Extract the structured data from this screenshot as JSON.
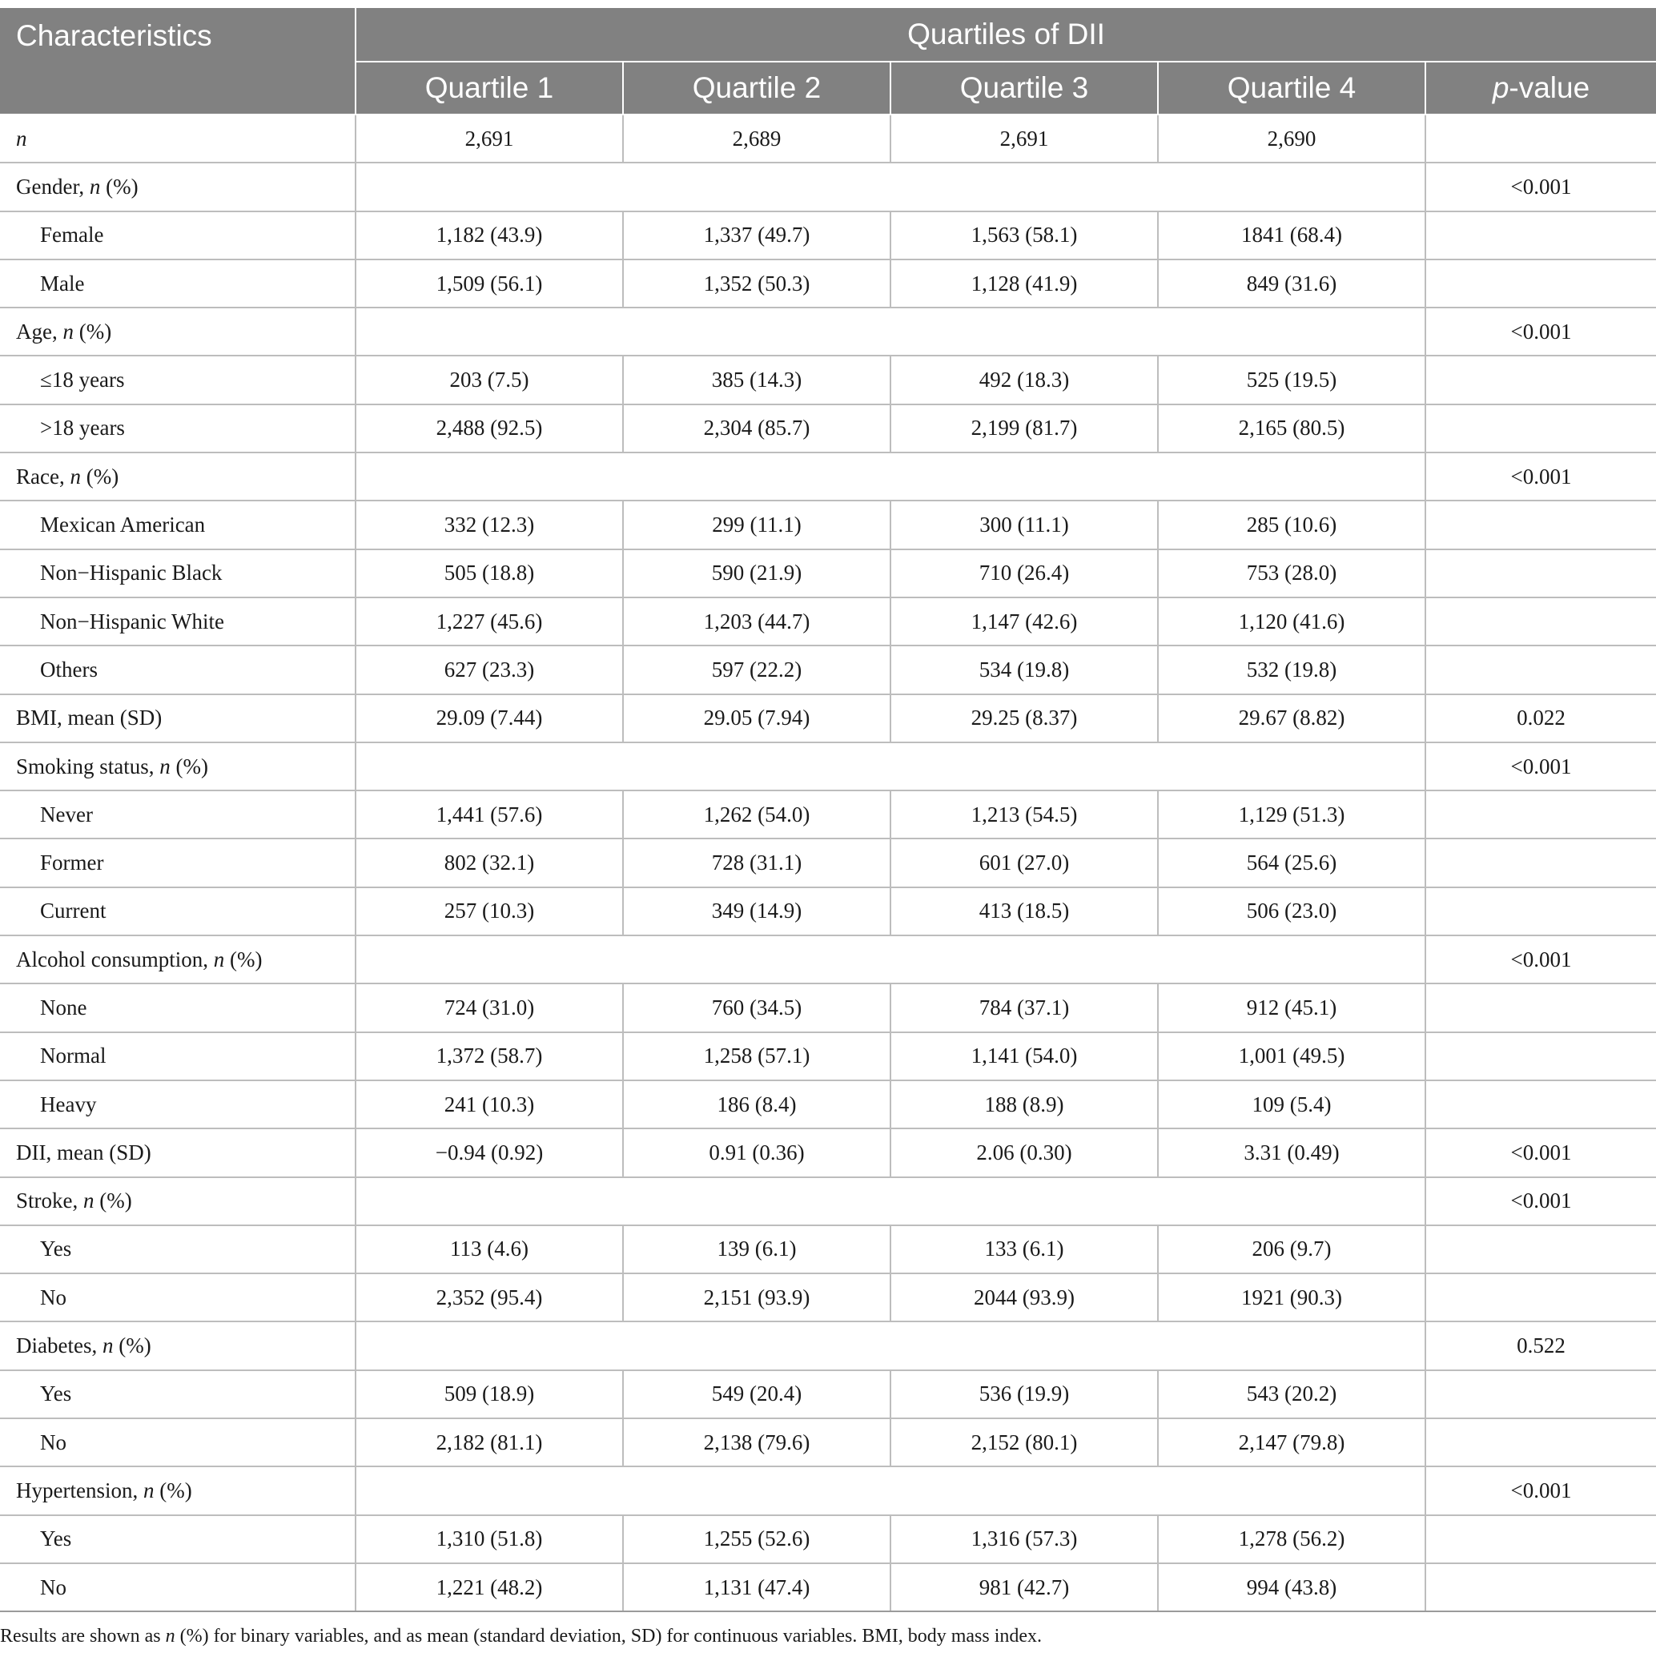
{
  "header": {
    "characteristics": "Characteristics",
    "group": "Quartiles of DII",
    "columns": [
      "Quartile 1",
      "Quartile 2",
      "Quartile 3",
      "Quartile 4"
    ],
    "pvalue_italic": "p",
    "pvalue_rest": "-value"
  },
  "rows": [
    {
      "type": "data",
      "label": "",
      "label_italic": "n",
      "label_suffix": "",
      "values": [
        "2,691",
        "2,689",
        "2,691",
        "2,690"
      ],
      "p": ""
    },
    {
      "type": "section",
      "label": "Gender, ",
      "label_italic": "n",
      "label_suffix": " (%)",
      "values": [],
      "p": "<0.001"
    },
    {
      "type": "sub",
      "label": "Female",
      "label_italic": "",
      "label_suffix": "",
      "values": [
        "1,182 (43.9)",
        "1,337 (49.7)",
        "1,563 (58.1)",
        "1841 (68.4)"
      ],
      "p": ""
    },
    {
      "type": "sub",
      "label": "Male",
      "label_italic": "",
      "label_suffix": "",
      "values": [
        "1,509 (56.1)",
        "1,352 (50.3)",
        "1,128 (41.9)",
        "849 (31.6)"
      ],
      "p": ""
    },
    {
      "type": "section",
      "label": "Age, ",
      "label_italic": "n",
      "label_suffix": " (%)",
      "values": [],
      "p": "<0.001"
    },
    {
      "type": "sub",
      "label": "≤18 years",
      "label_italic": "",
      "label_suffix": "",
      "values": [
        "203 (7.5)",
        "385 (14.3)",
        "492 (18.3)",
        "525 (19.5)"
      ],
      "p": ""
    },
    {
      "type": "sub",
      "label": ">18 years",
      "label_italic": "",
      "label_suffix": "",
      "values": [
        "2,488 (92.5)",
        "2,304 (85.7)",
        "2,199 (81.7)",
        "2,165 (80.5)"
      ],
      "p": ""
    },
    {
      "type": "section",
      "label": "Race, ",
      "label_italic": "n",
      "label_suffix": " (%)",
      "values": [],
      "p": "<0.001"
    },
    {
      "type": "sub",
      "label": "Mexican American",
      "label_italic": "",
      "label_suffix": "",
      "values": [
        "332 (12.3)",
        "299 (11.1)",
        "300 (11.1)",
        "285 (10.6)"
      ],
      "p": ""
    },
    {
      "type": "sub",
      "label": "Non−Hispanic Black",
      "label_italic": "",
      "label_suffix": "",
      "values": [
        "505 (18.8)",
        "590 (21.9)",
        "710 (26.4)",
        "753 (28.0)"
      ],
      "p": ""
    },
    {
      "type": "sub",
      "label": "Non−Hispanic White",
      "label_italic": "",
      "label_suffix": "",
      "values": [
        "1,227 (45.6)",
        "1,203 (44.7)",
        "1,147 (42.6)",
        "1,120 (41.6)"
      ],
      "p": ""
    },
    {
      "type": "sub",
      "label": "Others",
      "label_italic": "",
      "label_suffix": "",
      "values": [
        "627 (23.3)",
        "597 (22.2)",
        "534 (19.8)",
        "532 (19.8)"
      ],
      "p": ""
    },
    {
      "type": "data",
      "label": "BMI, mean (SD)",
      "label_italic": "",
      "label_suffix": "",
      "values": [
        "29.09 (7.44)",
        "29.05 (7.94)",
        "29.25 (8.37)",
        "29.67 (8.82)"
      ],
      "p": "0.022"
    },
    {
      "type": "section",
      "label": "Smoking status, ",
      "label_italic": "n",
      "label_suffix": " (%)",
      "values": [],
      "p": "<0.001"
    },
    {
      "type": "sub",
      "label": "Never",
      "label_italic": "",
      "label_suffix": "",
      "values": [
        "1,441 (57.6)",
        "1,262 (54.0)",
        "1,213 (54.5)",
        "1,129 (51.3)"
      ],
      "p": ""
    },
    {
      "type": "sub",
      "label": "Former",
      "label_italic": "",
      "label_suffix": "",
      "values": [
        "802 (32.1)",
        "728 (31.1)",
        "601 (27.0)",
        "564 (25.6)"
      ],
      "p": ""
    },
    {
      "type": "sub",
      "label": "Current",
      "label_italic": "",
      "label_suffix": "",
      "values": [
        "257 (10.3)",
        "349 (14.9)",
        "413 (18.5)",
        "506 (23.0)"
      ],
      "p": ""
    },
    {
      "type": "section",
      "label": "Alcohol consumption, ",
      "label_italic": "n",
      "label_suffix": " (%)",
      "values": [],
      "p": "<0.001"
    },
    {
      "type": "sub",
      "label": "None",
      "label_italic": "",
      "label_suffix": "",
      "values": [
        "724 (31.0)",
        "760 (34.5)",
        "784 (37.1)",
        "912 (45.1)"
      ],
      "p": ""
    },
    {
      "type": "sub",
      "label": "Normal",
      "label_italic": "",
      "label_suffix": "",
      "values": [
        "1,372 (58.7)",
        "1,258 (57.1)",
        "1,141 (54.0)",
        "1,001 (49.5)"
      ],
      "p": ""
    },
    {
      "type": "sub",
      "label": "Heavy",
      "label_italic": "",
      "label_suffix": "",
      "values": [
        "241 (10.3)",
        "186 (8.4)",
        "188 (8.9)",
        "109 (5.4)"
      ],
      "p": ""
    },
    {
      "type": "data",
      "label": "DII, mean (SD)",
      "label_italic": "",
      "label_suffix": "",
      "values": [
        "−0.94 (0.92)",
        "0.91 (0.36)",
        "2.06 (0.30)",
        "3.31 (0.49)"
      ],
      "p": "<0.001"
    },
    {
      "type": "section",
      "label": "Stroke, ",
      "label_italic": "n",
      "label_suffix": " (%)",
      "values": [],
      "p": "<0.001"
    },
    {
      "type": "sub",
      "label": "Yes",
      "label_italic": "",
      "label_suffix": "",
      "values": [
        "113 (4.6)",
        "139 (6.1)",
        "133 (6.1)",
        "206 (9.7)"
      ],
      "p": ""
    },
    {
      "type": "sub",
      "label": "No",
      "label_italic": "",
      "label_suffix": "",
      "values": [
        "2,352 (95.4)",
        "2,151 (93.9)",
        "2044 (93.9)",
        "1921 (90.3)"
      ],
      "p": ""
    },
    {
      "type": "section",
      "label": "Diabetes, ",
      "label_italic": "n",
      "label_suffix": " (%)",
      "values": [],
      "p": "0.522"
    },
    {
      "type": "sub",
      "label": "Yes",
      "label_italic": "",
      "label_suffix": "",
      "values": [
        "509 (18.9)",
        "549 (20.4)",
        "536 (19.9)",
        "543 (20.2)"
      ],
      "p": ""
    },
    {
      "type": "sub",
      "label": "No",
      "label_italic": "",
      "label_suffix": "",
      "values": [
        "2,182 (81.1)",
        "2,138 (79.6)",
        "2,152 (80.1)",
        "2,147 (79.8)"
      ],
      "p": ""
    },
    {
      "type": "section",
      "label": "Hypertension, ",
      "label_italic": "n",
      "label_suffix": " (%)",
      "values": [],
      "p": "<0.001"
    },
    {
      "type": "sub",
      "label": "Yes",
      "label_italic": "",
      "label_suffix": "",
      "values": [
        "1,310 (51.8)",
        "1,255 (52.6)",
        "1,316 (57.3)",
        "1,278 (56.2)"
      ],
      "p": ""
    },
    {
      "type": "sub",
      "label": "No",
      "label_italic": "",
      "label_suffix": "",
      "values": [
        "1,221 (48.2)",
        "1,131 (47.4)",
        "981 (42.7)",
        "994 (43.8)"
      ],
      "p": ""
    }
  ],
  "footnote": {
    "part1": "Results are shown as ",
    "italic": "n",
    "part2": " (%) for binary variables, and as mean (standard deviation, SD) for continuous variables. BMI, body mass index."
  }
}
